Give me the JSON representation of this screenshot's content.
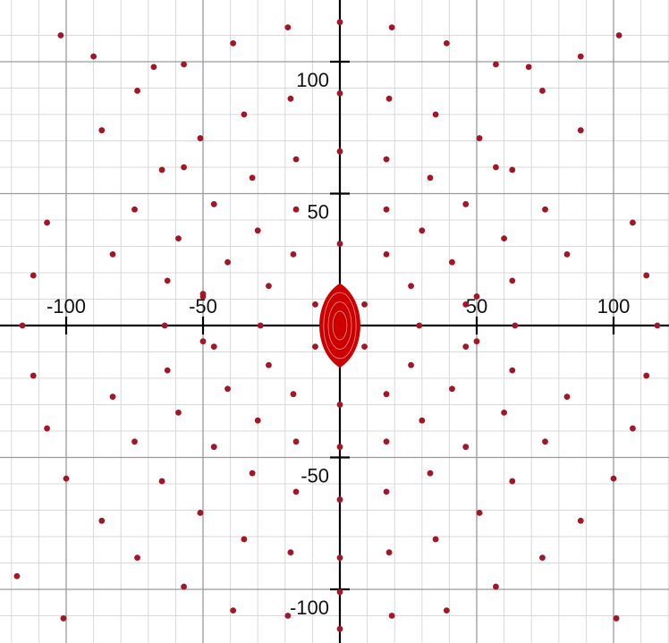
{
  "chart_data": {
    "type": "scatter",
    "xlim": [
      -120,
      120
    ],
    "ylim": [
      -115,
      118
    ],
    "grid": true,
    "grid_minor_step": 10,
    "grid_major_step": 50,
    "x_ticks": [
      -100,
      -50,
      50,
      100
    ],
    "y_ticks": [
      100,
      50,
      -50,
      -100
    ],
    "x_tick_labels": [
      "-100",
      "-50",
      "50",
      "100"
    ],
    "y_tick_labels": [
      "100",
      "50",
      "-50",
      "-100"
    ],
    "colors": {
      "point": "#a31626",
      "point_alt": "#7b1f6e",
      "cluster": "#cc0000",
      "axis": "#000000"
    },
    "central_cluster": {
      "x": 0,
      "y": 0,
      "rx": 8,
      "ry": 16
    },
    "points": [
      [
        0,
        115
      ],
      [
        -102,
        110
      ],
      [
        -90,
        102
      ],
      [
        -68,
        98
      ],
      [
        -57,
        99
      ],
      [
        -39,
        107
      ],
      [
        -19,
        113
      ],
      [
        19,
        113
      ],
      [
        39,
        107
      ],
      [
        57,
        99
      ],
      [
        69,
        98
      ],
      [
        88,
        102
      ],
      [
        102,
        110
      ],
      [
        -74,
        89
      ],
      [
        -18,
        86
      ],
      [
        0,
        88
      ],
      [
        18,
        86
      ],
      [
        74,
        89
      ],
      [
        -35,
        80
      ],
      [
        35,
        80
      ],
      [
        -87,
        74
      ],
      [
        -51,
        71
      ],
      [
        51,
        71
      ],
      [
        88,
        74
      ],
      [
        -65,
        59
      ],
      [
        -57,
        60
      ],
      [
        0,
        66
      ],
      [
        -16,
        63
      ],
      [
        17,
        63
      ],
      [
        -32,
        56
      ],
      [
        33,
        56
      ],
      [
        57,
        60
      ],
      [
        63,
        59
      ],
      [
        -46,
        46
      ],
      [
        46,
        46
      ],
      [
        -75,
        44
      ],
      [
        -16,
        44
      ],
      [
        17,
        44
      ],
      [
        75,
        44
      ],
      [
        -107,
        39
      ],
      [
        107,
        39
      ],
      [
        -59,
        33
      ],
      [
        -30,
        36
      ],
      [
        0,
        31
      ],
      [
        30,
        36
      ],
      [
        60,
        33
      ],
      [
        -41,
        24
      ],
      [
        -17,
        27
      ],
      [
        17,
        27
      ],
      [
        41,
        24
      ],
      [
        -83,
        27
      ],
      [
        83,
        27
      ],
      [
        -112,
        19
      ],
      [
        112,
        19
      ],
      [
        -63,
        17
      ],
      [
        -26,
        15
      ],
      [
        26,
        15
      ],
      [
        63,
        17
      ],
      [
        -50,
        12
      ],
      [
        -9,
        8
      ],
      [
        9,
        8
      ],
      [
        -50,
        11
      ],
      [
        50,
        11
      ],
      [
        46,
        8
      ],
      [
        -116,
        0
      ],
      [
        -64,
        0
      ],
      [
        -29,
        0
      ],
      [
        29,
        0
      ],
      [
        64,
        0
      ],
      [
        116,
        0
      ],
      [
        -50,
        -6
      ],
      [
        -46,
        -8
      ],
      [
        46,
        -8
      ],
      [
        50,
        -6
      ],
      [
        -9,
        -8
      ],
      [
        9,
        -8
      ],
      [
        -63,
        -17
      ],
      [
        -26,
        -15
      ],
      [
        26,
        -15
      ],
      [
        63,
        -17
      ],
      [
        -112,
        -19
      ],
      [
        112,
        -19
      ],
      [
        -41,
        -24
      ],
      [
        -17,
        -26
      ],
      [
        17,
        -26
      ],
      [
        41,
        -24
      ],
      [
        -83,
        -27
      ],
      [
        83,
        -27
      ],
      [
        -59,
        -33
      ],
      [
        -30,
        -36
      ],
      [
        0,
        -30
      ],
      [
        30,
        -36
      ],
      [
        60,
        -33
      ],
      [
        -107,
        -39
      ],
      [
        107,
        -39
      ],
      [
        -75,
        -44
      ],
      [
        -16,
        -44
      ],
      [
        17,
        -44
      ],
      [
        75,
        -44
      ],
      [
        -46,
        -46
      ],
      [
        46,
        -46
      ],
      [
        -65,
        -59
      ],
      [
        -32,
        -56
      ],
      [
        0,
        -46
      ],
      [
        33,
        -56
      ],
      [
        63,
        -59
      ],
      [
        -16,
        -63
      ],
      [
        17,
        -63
      ],
      [
        -100,
        -58
      ],
      [
        100,
        -58
      ],
      [
        -51,
        -71
      ],
      [
        0,
        -66
      ],
      [
        51,
        -71
      ],
      [
        -87,
        -74
      ],
      [
        88,
        -74
      ],
      [
        -35,
        -81
      ],
      [
        35,
        -81
      ],
      [
        -74,
        -88
      ],
      [
        -18,
        -86
      ],
      [
        0,
        -88
      ],
      [
        18,
        -86
      ],
      [
        74,
        -88
      ],
      [
        -57,
        -99
      ],
      [
        0,
        -101
      ],
      [
        57,
        -99
      ],
      [
        -118,
        -95
      ],
      [
        -39,
        -108
      ],
      [
        -19,
        -110
      ],
      [
        19,
        -110
      ],
      [
        39,
        -108
      ],
      [
        -101,
        -111
      ],
      [
        101,
        -111
      ],
      [
        0,
        -115
      ]
    ]
  }
}
